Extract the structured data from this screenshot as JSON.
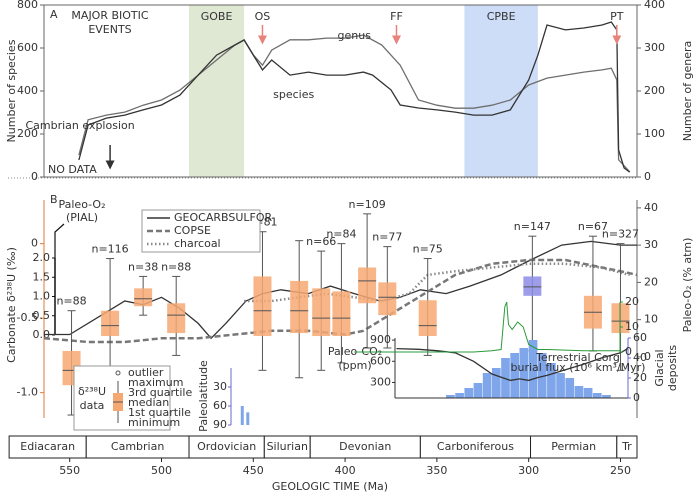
{
  "chart_data": [
    {
      "type": "line",
      "panel": "A",
      "title_lines": [
        "MAJOR BIOTIC",
        "EVENTS"
      ],
      "xlim": [
        564,
        241
      ],
      "ylabel": "Number of species",
      "ylim": [
        0,
        800
      ],
      "yticks": [
        0,
        200,
        400,
        600,
        800
      ],
      "y2label": "Number of genera",
      "y2lim": [
        0,
        400
      ],
      "y2ticks": [
        0,
        100,
        200,
        300,
        400
      ],
      "series": [
        {
          "name": "genus",
          "axis": "y2",
          "color": "#6e6e6e",
          "x": [
            545,
            540,
            530,
            520,
            510,
            500,
            490,
            480,
            470,
            460,
            455,
            450,
            445,
            440,
            430,
            420,
            410,
            400,
            390,
            380,
            370,
            360,
            350,
            340,
            330,
            320,
            310,
            300,
            290,
            280,
            270,
            260,
            255,
            252,
            251,
            245
          ],
          "values": [
            51,
            133,
            144,
            151,
            167,
            179,
            202,
            237,
            272,
            307,
            319,
            284,
            260,
            295,
            319,
            319,
            323,
            323,
            330,
            307,
            260,
            179,
            167,
            160,
            160,
            167,
            179,
            214,
            230,
            237,
            244,
            249,
            253,
            226,
            40,
            12
          ]
        },
        {
          "name": "species",
          "axis": "y",
          "color": "#333333",
          "x": [
            545,
            540,
            530,
            520,
            510,
            500,
            490,
            480,
            470,
            460,
            455,
            450,
            445,
            440,
            430,
            420,
            410,
            400,
            390,
            385,
            375,
            370,
            360,
            350,
            340,
            330,
            320,
            310,
            300,
            295,
            290,
            280,
            270,
            260,
            255,
            252,
            251,
            248,
            245
          ],
          "values": [
            79,
            242,
            274,
            288,
            312,
            335,
            381,
            474,
            567,
            614,
            637,
            567,
            498,
            544,
            474,
            488,
            474,
            474,
            488,
            474,
            405,
            335,
            321,
            312,
            302,
            288,
            288,
            312,
            451,
            567,
            707,
            684,
            693,
            707,
            721,
            684,
            126,
            42,
            23
          ]
        }
      ],
      "events": [
        {
          "label": "GOBE",
          "start": 485,
          "end": 455,
          "color": "#dfe8d3"
        },
        {
          "label": "CPBE",
          "start": 335,
          "end": 295,
          "color": "#cddcf7"
        }
      ],
      "arrows": [
        {
          "label": "OS",
          "x": 445
        },
        {
          "label": "FF",
          "x": 372
        },
        {
          "label": "PT",
          "x": 252
        }
      ],
      "arrow_color": "#e8827a",
      "explosion": {
        "label": "Cambrian explosion",
        "x": 528
      },
      "nodata": "NO DATA"
    },
    {
      "type": "box",
      "panel": "B",
      "xlim": [
        564,
        241
      ],
      "ylabel": "Carbonate δ²³⁸U (‰)",
      "ylim": [
        -1.17,
        0.36
      ],
      "yticks": [
        {
          "value": -1,
          "label": "-1.0"
        },
        -0.5,
        0
      ],
      "y2label": "Paleo-O₂ (% atm)",
      "y2lim": [
        -16.4,
        44.8
      ],
      "y2ticks": [
        0,
        10,
        20,
        30,
        40
      ],
      "pial_lines": [
        "Paleo-O₂",
        "(PIAL)"
      ],
      "pial_lim": [
        0,
        2
      ],
      "pial_ticks": [
        {
          "value": 0,
          "label": "0.0"
        },
        {
          "value": 0.5,
          "label": "0.5"
        },
        {
          "value": 1,
          "label": "1.0"
        },
        {
          "value": 1.5,
          "label": "1.5"
        },
        {
          "value": 2,
          "label": "2.0"
        }
      ],
      "axis_color": "#e07b39",
      "boxes": [
        {
          "x": 549,
          "min": -1.15,
          "q1": -0.95,
          "median": -0.85,
          "q3": -0.72,
          "max": -0.45,
          "label": "n=88",
          "color": "#f6a873"
        },
        {
          "x": 528,
          "min": -0.92,
          "q1": -0.62,
          "median": -0.55,
          "q3": -0.45,
          "max": -0.1,
          "label": "n=116",
          "color": "#f6a873"
        },
        {
          "x": 510,
          "min": -0.48,
          "q1": -0.42,
          "median": -0.37,
          "q3": -0.3,
          "max": -0.22,
          "label": "n=38",
          "color": "#f6a873"
        },
        {
          "x": 492,
          "min": -0.75,
          "q1": -0.6,
          "median": -0.48,
          "q3": -0.4,
          "max": -0.22,
          "label": "n=88",
          "color": "#f6a873"
        },
        {
          "x": 445,
          "min": -0.85,
          "q1": -0.62,
          "median": -0.45,
          "q3": -0.22,
          "max": 0.08,
          "label": "n=81",
          "color": "#f6a873"
        },
        {
          "x": 425,
          "min": -0.9,
          "q1": -0.6,
          "median": -0.45,
          "q3": -0.25,
          "max": 0.02,
          "label": null,
          "color": "#f6a873"
        },
        {
          "x": 413,
          "min": -0.85,
          "q1": -0.62,
          "median": -0.5,
          "q3": -0.3,
          "max": -0.05,
          "label": "n=66",
          "color": "#f6a873"
        },
        {
          "x": 402,
          "min": -0.8,
          "q1": -0.62,
          "median": -0.5,
          "q3": -0.32,
          "max": 0,
          "label": "n=84",
          "color": "#f6a873"
        },
        {
          "x": 388,
          "min": -0.7,
          "q1": -0.4,
          "median": -0.25,
          "q3": -0.16,
          "max": 0.2,
          "label": "n=109",
          "color": "#f6a873"
        },
        {
          "x": 377,
          "min": -0.7,
          "q1": -0.48,
          "median": -0.36,
          "q3": -0.26,
          "max": -0.02,
          "label": "n=77",
          "color": "#f6a873"
        },
        {
          "x": 355,
          "min": -0.75,
          "q1": -0.62,
          "median": -0.55,
          "q3": -0.38,
          "max": -0.1,
          "label": "n=75",
          "color": "#f6a873"
        },
        {
          "x": 298,
          "min": -0.72,
          "q1": -0.35,
          "median": -0.29,
          "q3": -0.22,
          "max": 0.05,
          "label": "n=147",
          "color": "#8c8ce6"
        },
        {
          "x": 265,
          "min": -0.72,
          "q1": -0.57,
          "median": -0.46,
          "q3": -0.35,
          "max": 0.05,
          "label": "n=67",
          "color": "#f6a873"
        },
        {
          "x": 250,
          "min": -0.85,
          "q1": -0.6,
          "median": -0.52,
          "q3": -0.4,
          "max": 0,
          "label": "n=327",
          "color": "#f6a873"
        }
      ],
      "series": [
        {
          "name": "GEOCARBSULFOR",
          "axis": "y2",
          "color": "#333333",
          "dash": "solid",
          "x": [
            564,
            550,
            530,
            520,
            510,
            500,
            490,
            480,
            473,
            465,
            454,
            445,
            435,
            420,
            408,
            395,
            381,
            370,
            359,
            345,
            332,
            315,
            299,
            282,
            266,
            250,
            241
          ],
          "values": [
            6,
            6,
            12,
            15,
            14,
            16,
            13,
            9,
            5,
            9,
            15,
            17,
            18,
            17,
            19,
            17,
            15,
            16,
            18,
            17,
            19,
            22,
            26,
            30,
            31,
            30,
            30
          ]
        },
        {
          "name": "COPSE",
          "axis": "y2",
          "color": "#777777",
          "dash": "dashed",
          "x": [
            564,
            540,
            520,
            500,
            480,
            460,
            440,
            420,
            400,
            390,
            380,
            370,
            360,
            350,
            340,
            320,
            300,
            280,
            260,
            250,
            241
          ],
          "values": [
            5,
            4,
            4,
            5,
            5,
            6,
            7,
            7,
            6,
            7,
            10,
            13,
            16,
            19,
            22,
            25,
            26,
            26,
            24,
            23,
            22
          ]
        },
        {
          "name": "charcoal",
          "axis": "y2",
          "color": "#888888",
          "dash": "dotted",
          "x": [
            455,
            440,
            425,
            410,
            395,
            380,
            365,
            355,
            340,
            320,
            300,
            280,
            261,
            245
          ],
          "values": [
            15,
            15,
            16,
            17,
            16,
            15,
            17,
            22,
            23,
            24,
            25,
            25,
            24,
            22
          ]
        }
      ],
      "box_legend": {
        "title_lines": [
          "δ²³⁸U",
          "data"
        ],
        "items": [
          "outlier",
          "maximum",
          "3rd quartile",
          "median",
          "1st quartile",
          "minimum"
        ]
      },
      "periods": [
        {
          "name": "Ediacaran",
          "start": 583,
          "end": 541
        },
        {
          "name": "Cambrian",
          "start": 541,
          "end": 485
        },
        {
          "name": "Ordovician",
          "start": 485,
          "end": 444
        },
        {
          "name": "Silurian",
          "start": 444,
          "end": 419
        },
        {
          "name": "Devonian",
          "start": 419,
          "end": 359
        },
        {
          "name": "Carboniferous",
          "start": 359,
          "end": 299
        },
        {
          "name": "Permian",
          "start": 299,
          "end": 252
        },
        {
          "name": "Tr",
          "start": 252,
          "end": 241
        }
      ],
      "xticks": [
        550,
        500,
        450,
        400,
        350,
        300,
        250
      ],
      "xlabel": "GEOLOGIC TIME (Ma)"
    },
    {
      "type": "combo",
      "ylabel_lines": [
        "Paleo-CO₂",
        "(ppm)"
      ],
      "ylim": [
        80,
        930
      ],
      "yticks": [
        300,
        600,
        900
      ],
      "y2label_lines": [
        "Glacial",
        "deposits"
      ],
      "y2lim": [
        0,
        60
      ],
      "y2ticks": [
        0,
        20,
        40,
        60
      ],
      "series": [
        {
          "name": "Paleo-CO₂",
          "color": "#333333",
          "x": [
            372,
            360,
            350,
            340,
            330,
            320,
            310,
            305,
            300,
            295,
            290,
            280,
            270,
            260,
            250,
            246
          ],
          "values": [
            780,
            770,
            750,
            720,
            600,
            420,
            330,
            350,
            330,
            370,
            400,
            480,
            560,
            650,
            720,
            780
          ]
        }
      ],
      "bins": [
        345,
        340,
        335,
        330,
        325,
        320,
        315,
        310,
        305,
        300,
        295,
        290,
        285,
        280,
        275,
        270,
        265,
        260,
        255
      ],
      "counts": [
        3,
        5,
        10,
        15,
        25,
        30,
        40,
        45,
        50,
        58,
        45,
        35,
        25,
        20,
        12,
        10,
        5,
        3
      ],
      "bar_color": "#7fa6ea"
    },
    {
      "type": "line",
      "label_lines": [
        "Terrestrial Corg",
        "burial flux (10⁶ km³/Myr)"
      ],
      "ylim": [
        0,
        20
      ],
      "yticks": [
        0,
        10,
        20
      ],
      "color": "#2a9a3a",
      "x": [
        395,
        330,
        320,
        315,
        313,
        312,
        311,
        309,
        306,
        303,
        300,
        295,
        290,
        270,
        250
      ],
      "values": [
        0,
        0,
        0.5,
        1,
        18,
        20,
        11,
        9,
        12,
        10,
        3,
        1,
        1,
        0.5,
        0.5
      ]
    },
    {
      "type": "bar",
      "ylabel": "Paleolatitude",
      "ylim": [
        0,
        90
      ],
      "yticks": [
        30,
        60,
        90
      ],
      "color": "#7fa6ea",
      "x": [
        456,
        453
      ],
      "values": [
        60,
        70
      ]
    }
  ]
}
